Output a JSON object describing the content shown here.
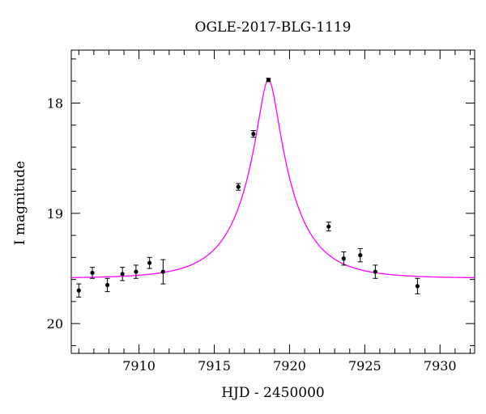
{
  "chart_data": {
    "type": "scatter",
    "title": "OGLE-2017-BLG-1119",
    "xlabel": "HJD - 2450000",
    "ylabel": "I magnitude",
    "xlim": [
      7905.5,
      7932.3
    ],
    "ylim": [
      20.27,
      17.52
    ],
    "y_inverted": true,
    "x_ticks": [
      7910,
      7915,
      7920,
      7925,
      7930
    ],
    "x_tick_labels": [
      "7910",
      "7915",
      "7920",
      "7925",
      "7930"
    ],
    "y_ticks": [
      18,
      19,
      20
    ],
    "y_tick_labels": [
      "18",
      "19",
      "20"
    ],
    "grid": false,
    "legend": "none",
    "colors": {
      "model": "#ff00ff",
      "points": "#000000",
      "axes": "#000000"
    },
    "series": [
      {
        "kind": "points_with_errorbars",
        "x": [
          7906.0,
          7906.9,
          7907.9,
          7908.9,
          7909.8,
          7910.7,
          7911.6,
          7916.6,
          7917.6,
          7918.6,
          7922.6,
          7923.6,
          7924.7,
          7925.7,
          7928.5
        ],
        "y": [
          19.7,
          19.54,
          19.65,
          19.55,
          19.53,
          19.45,
          19.53,
          18.76,
          18.28,
          17.79,
          19.12,
          19.41,
          19.38,
          19.53,
          19.66
        ],
        "err": [
          0.06,
          0.05,
          0.06,
          0.06,
          0.06,
          0.05,
          0.11,
          0.03,
          0.03,
          0.015,
          0.04,
          0.06,
          0.06,
          0.06,
          0.07
        ]
      },
      {
        "kind": "model_curve",
        "t0": 7918.6,
        "peak_mag": 17.79,
        "baseline_mag": 19.59,
        "tE_days": 3.3
      }
    ]
  }
}
